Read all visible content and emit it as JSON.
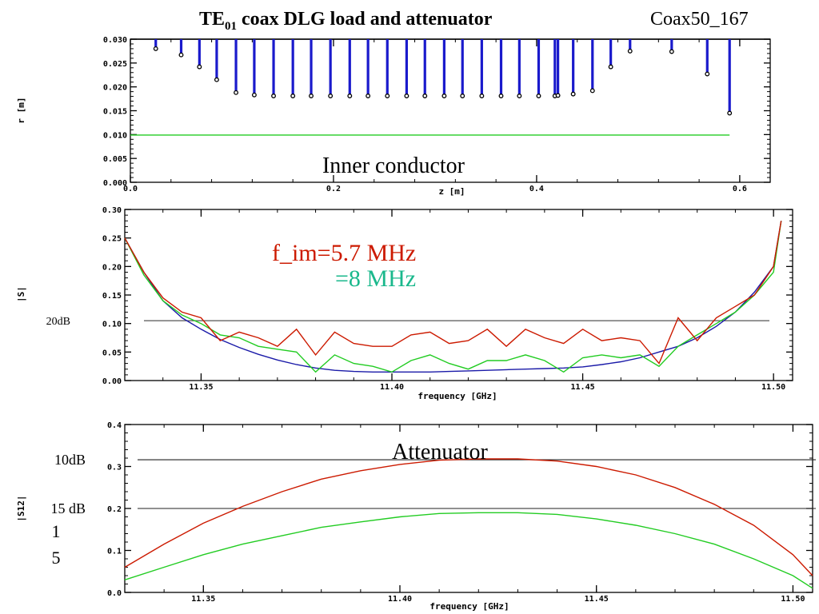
{
  "header": {
    "title_main": "TE",
    "title_sub": "01",
    "title_rest": "coax DLG load and attenuator",
    "tag": "Coax50_167"
  },
  "colors": {
    "red": "#cc1a00",
    "green": "#22cc22",
    "blue": "#1a1aa8",
    "cyan": "#1ab88c",
    "stem": "#1a1acc",
    "gray": "#555555"
  },
  "chart_data": [
    {
      "type": "bar",
      "panel": "inner-conductor",
      "annotation": "Inner conductor",
      "xlabel": "z [m]",
      "ylabel": "r [m]",
      "xlim": [
        0.0,
        0.63
      ],
      "ylim": [
        0.0,
        0.03
      ],
      "yticks": [
        "0.000",
        "0.005",
        "0.010",
        "0.015",
        "0.020",
        "0.025",
        "0.030"
      ],
      "xticks": [
        "0.0",
        "0.2",
        "0.4",
        "0.6"
      ],
      "baseline": 0.03,
      "reference_line": 0.0099,
      "x": [
        0.025,
        0.05,
        0.068,
        0.085,
        0.104,
        0.122,
        0.141,
        0.16,
        0.178,
        0.197,
        0.216,
        0.234,
        0.253,
        0.272,
        0.29,
        0.309,
        0.327,
        0.346,
        0.365,
        0.383,
        0.402,
        0.418,
        0.421,
        0.436,
        0.455,
        0.473,
        0.492,
        0.533,
        0.568,
        0.59
      ],
      "y": [
        0.028,
        0.0267,
        0.0242,
        0.0215,
        0.0188,
        0.0183,
        0.0181,
        0.0181,
        0.0181,
        0.0181,
        0.0181,
        0.0181,
        0.0181,
        0.0181,
        0.0181,
        0.0181,
        0.0181,
        0.0181,
        0.0181,
        0.0181,
        0.0181,
        0.0181,
        0.0182,
        0.0185,
        0.0192,
        0.0242,
        0.0275,
        0.0274,
        0.0227,
        0.0145
      ]
    },
    {
      "type": "line",
      "panel": "reflection",
      "xlabel": "frequency [GHz]",
      "ylabel": "|S|",
      "xlim": [
        11.33,
        11.505
      ],
      "ylim": [
        0.0,
        0.3
      ],
      "yticks": [
        "0.00",
        "0.05",
        "0.10",
        "0.15",
        "0.20",
        "0.25",
        "0.30"
      ],
      "xticks": [
        11.35,
        11.4,
        11.45,
        11.5
      ],
      "xtick_labels": [
        "11.35",
        "11.40",
        "11.45",
        "11.50"
      ],
      "level_label": "20dB",
      "level": 0.105,
      "annotations": [
        "f_im=5.7 MHz",
        "=8 MHz"
      ],
      "x": [
        11.33,
        11.335,
        11.34,
        11.345,
        11.35,
        11.355,
        11.36,
        11.365,
        11.37,
        11.375,
        11.38,
        11.385,
        11.39,
        11.395,
        11.4,
        11.405,
        11.41,
        11.415,
        11.42,
        11.425,
        11.43,
        11.435,
        11.44,
        11.445,
        11.45,
        11.455,
        11.46,
        11.465,
        11.47,
        11.475,
        11.48,
        11.485,
        11.49,
        11.495,
        11.5,
        11.502
      ],
      "series": [
        {
          "color": "red",
          "values": [
            0.25,
            0.19,
            0.145,
            0.12,
            0.11,
            0.07,
            0.085,
            0.075,
            0.06,
            0.09,
            0.045,
            0.085,
            0.065,
            0.06,
            0.06,
            0.08,
            0.085,
            0.065,
            0.07,
            0.09,
            0.06,
            0.09,
            0.075,
            0.065,
            0.09,
            0.07,
            0.075,
            0.07,
            0.03,
            0.11,
            0.07,
            0.11,
            0.13,
            0.15,
            0.2,
            0.28
          ]
        },
        {
          "color": "green",
          "values": [
            0.25,
            0.185,
            0.14,
            0.115,
            0.1,
            0.08,
            0.075,
            0.06,
            0.055,
            0.05,
            0.015,
            0.045,
            0.03,
            0.025,
            0.015,
            0.035,
            0.045,
            0.03,
            0.02,
            0.035,
            0.035,
            0.045,
            0.035,
            0.015,
            0.04,
            0.045,
            0.04,
            0.045,
            0.025,
            0.06,
            0.08,
            0.1,
            0.12,
            0.15,
            0.19,
            0.28
          ]
        },
        {
          "color": "blue",
          "values": [
            0.25,
            0.19,
            0.14,
            0.11,
            0.09,
            0.072,
            0.058,
            0.046,
            0.036,
            0.028,
            0.022,
            0.018,
            0.016,
            0.015,
            0.015,
            0.015,
            0.015,
            0.016,
            0.017,
            0.018,
            0.019,
            0.02,
            0.021,
            0.022,
            0.024,
            0.028,
            0.033,
            0.04,
            0.05,
            0.06,
            0.075,
            0.095,
            0.12,
            0.155,
            0.2,
            0.28
          ]
        }
      ]
    },
    {
      "type": "line",
      "panel": "attenuator",
      "annotation": "Attenuator",
      "xlabel": "frequency [GHz]",
      "ylabel": "|S12|",
      "xlim": [
        11.33,
        11.505
      ],
      "ylim": [
        0.0,
        0.4
      ],
      "yticks": [
        "0.0",
        "0.1",
        "0.2",
        "0.3",
        "0.4"
      ],
      "xticks": [
        11.35,
        11.4,
        11.45,
        11.5
      ],
      "xtick_labels": [
        "11.35",
        "11.40",
        "11.45",
        "11.50"
      ],
      "levels": [
        {
          "label": "10dB",
          "value": 0.316
        },
        {
          "label": "15 dB",
          "value": 0.2
        }
      ],
      "side_label_lines": [
        "1",
        "5"
      ],
      "x": [
        11.33,
        11.34,
        11.35,
        11.36,
        11.37,
        11.38,
        11.39,
        11.4,
        11.41,
        11.42,
        11.43,
        11.44,
        11.45,
        11.46,
        11.47,
        11.48,
        11.49,
        11.5,
        11.505
      ],
      "series": [
        {
          "color": "red",
          "values": [
            0.06,
            0.115,
            0.165,
            0.205,
            0.24,
            0.27,
            0.29,
            0.305,
            0.315,
            0.318,
            0.318,
            0.313,
            0.3,
            0.28,
            0.25,
            0.21,
            0.16,
            0.09,
            0.04
          ]
        },
        {
          "color": "green",
          "values": [
            0.03,
            0.06,
            0.09,
            0.115,
            0.135,
            0.155,
            0.168,
            0.18,
            0.188,
            0.19,
            0.19,
            0.186,
            0.175,
            0.16,
            0.14,
            0.115,
            0.08,
            0.04,
            0.01
          ]
        }
      ]
    }
  ]
}
